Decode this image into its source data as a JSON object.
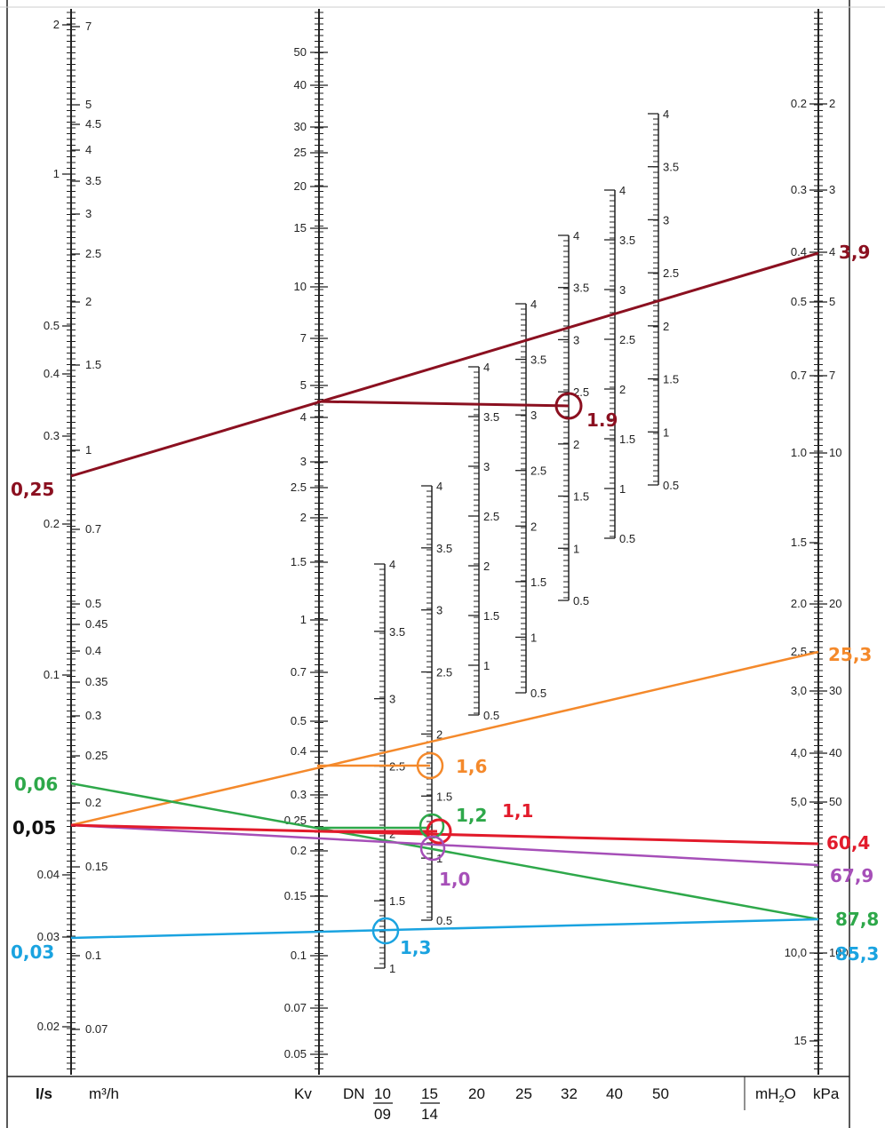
{
  "colors": {
    "maroon": "#8b1020",
    "orange": "#f4892b",
    "green": "#2ea84a",
    "red": "#e21b2b",
    "purple": "#a64fb8",
    "blue": "#1aa3e0",
    "black": "#111111"
  },
  "scales": {
    "ls_ticks": [
      "2",
      "1",
      "0.5",
      "0.4",
      "0.3",
      "0.2",
      "0.1",
      "0.04",
      "0.03",
      "0.02"
    ],
    "m3h_ticks": [
      "7",
      "5",
      "4.5",
      "4",
      "3.5",
      "3",
      "2.5",
      "2",
      "1.5",
      "1",
      "0.7",
      "0.5",
      "0.45",
      "0.4",
      "0.35",
      "0.3",
      "0.25",
      "0.2",
      "0.15",
      "0.1",
      "0.07"
    ],
    "kv_ticks": [
      "50",
      "40",
      "30",
      "25",
      "20",
      "15",
      "10",
      "7",
      "5",
      "4",
      "3",
      "2.5",
      "2",
      "1.5",
      "1",
      "0.7",
      "0.5",
      "0.4",
      "0.3",
      "0.25",
      "0.2",
      "0.15",
      "0.1",
      "0.07",
      "0.05"
    ],
    "mh2o_ticks": [
      "0.2",
      "0.3",
      "0.4",
      "0.5",
      "0.7",
      "1.0",
      "1.5",
      "2.0",
      "2.5",
      "3,0",
      "4,0",
      "5,0",
      "10,0",
      "15"
    ],
    "kpa_ticks": [
      "2",
      "3",
      "4",
      "5",
      "7",
      "10",
      "20",
      "30",
      "40",
      "50",
      "100"
    ]
  },
  "dn_scales": [
    {
      "ticks": [
        "4",
        "3.5",
        "3",
        "2.5",
        "2",
        "1.5",
        "1"
      ]
    },
    {
      "ticks": [
        "4",
        "3.5",
        "3",
        "2.5",
        "2",
        "1.5",
        "1",
        "0.5"
      ]
    },
    {
      "ticks": [
        "4",
        "3.5",
        "3",
        "2.5",
        "2",
        "1.5",
        "1",
        "0.5"
      ]
    },
    {
      "ticks": [
        "4",
        "3.5",
        "3",
        "2.5",
        "2",
        "1.5",
        "1",
        "0.5"
      ]
    },
    {
      "ticks": [
        "4",
        "3.5",
        "3",
        "2.5",
        "2",
        "1.5",
        "1",
        "0.5"
      ]
    },
    {
      "ticks": [
        "4",
        "3.5",
        "3",
        "2.5",
        "2",
        "1.5",
        "1",
        "0.5"
      ]
    },
    {
      "ticks": [
        "4",
        "3.5",
        "3",
        "2.5",
        "2",
        "1.5",
        "1",
        "0.5"
      ]
    }
  ],
  "annotations": {
    "maroon_flow": "0,25",
    "maroon_dp": "3,9",
    "maroon_pos": "1.9",
    "orange_dp": "25,3",
    "orange_pos": "1,6",
    "green_flow": "0,06",
    "green_pos": "1,2",
    "green_dp": "87,8",
    "red_pos": "1,1",
    "red_dp": "60,4",
    "flow_005": "0,05",
    "purple_pos": "1,0",
    "purple_dp": "67,9",
    "blue_flow": "0,03",
    "blue_pos": "1,3",
    "blue_dp": "85,3"
  },
  "footer": {
    "ls": "l/s",
    "m3h": "m³/h",
    "kv": "Kv",
    "dn": "DN",
    "dn_1009_top": "10",
    "dn_1009_bottom": "09",
    "dn_1514_top": "15",
    "dn_1514_bottom": "14",
    "dn20": "20",
    "dn25": "25",
    "dn32": "32",
    "dn40": "40",
    "dn50": "50",
    "mh2o": "mH",
    "mh2o_sub": "2",
    "mh2o_o": "O",
    "kpa": "kPa"
  }
}
